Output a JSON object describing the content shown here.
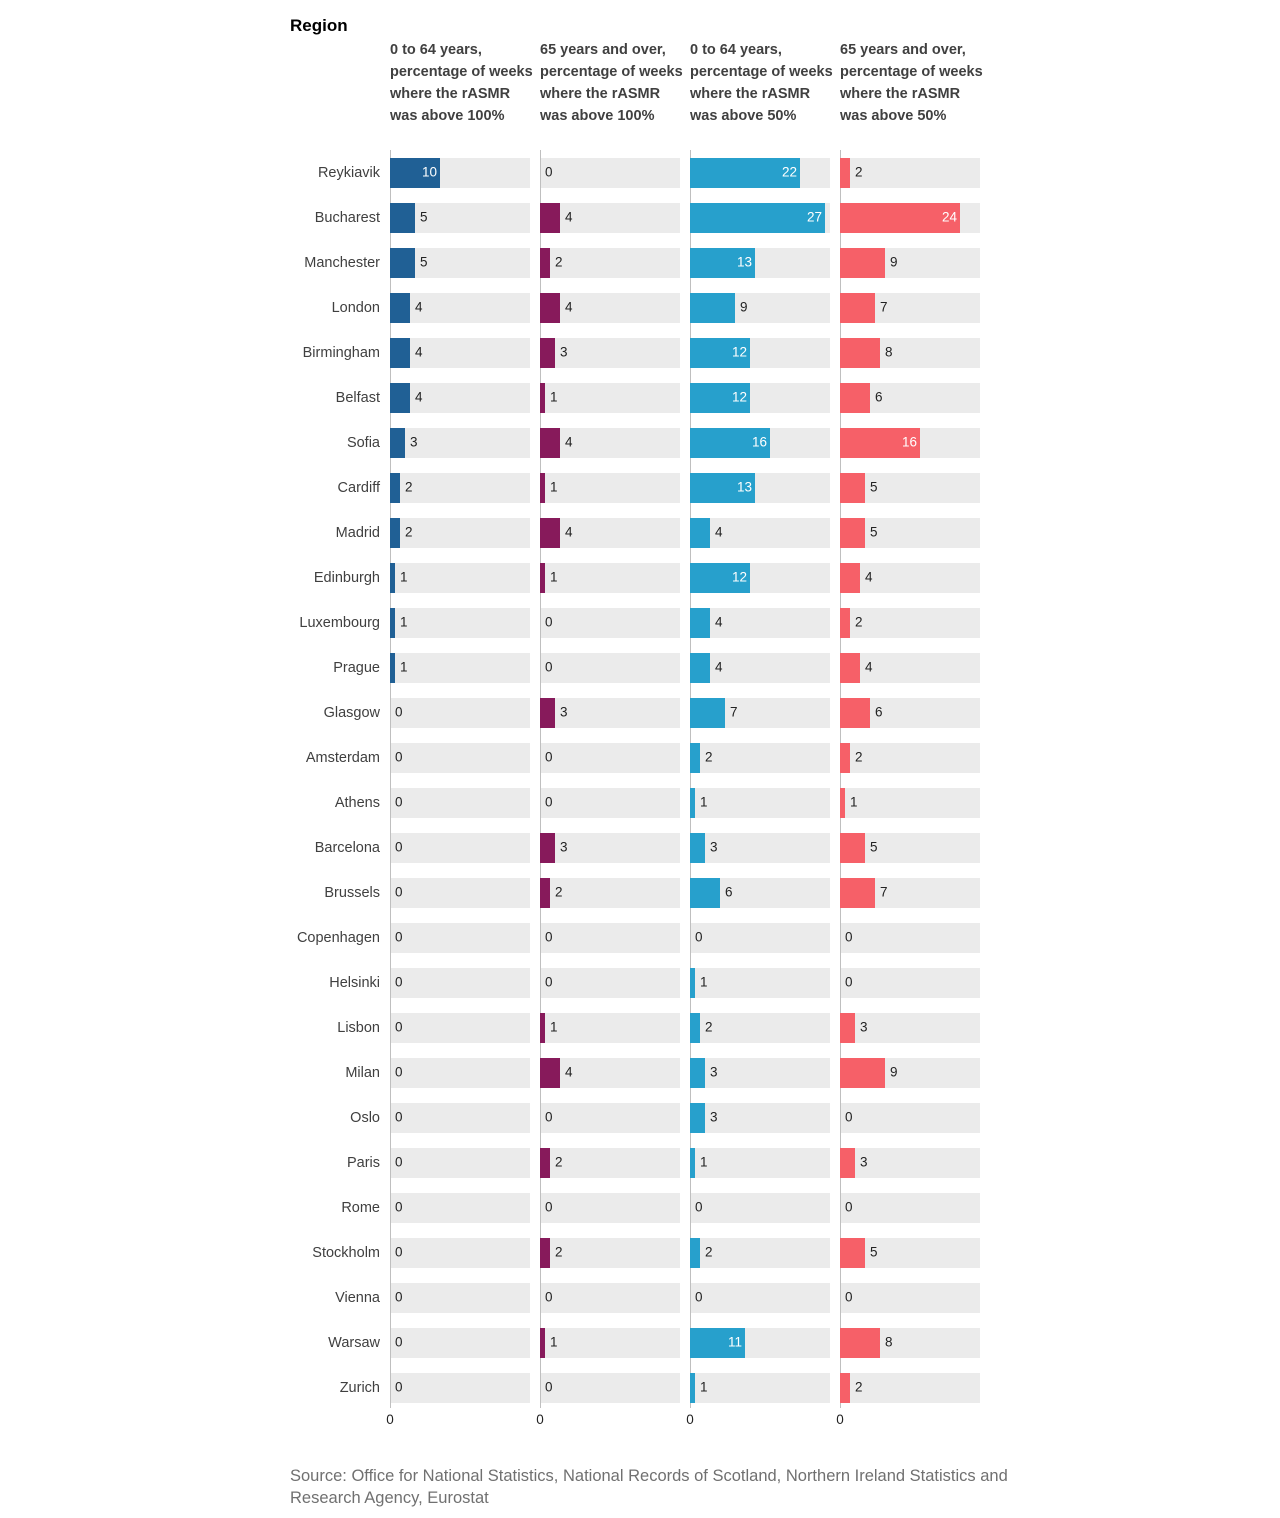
{
  "title": "Region",
  "source": "Source: Office for National Statistics, National Records of Scotland, Northern Ireland Statistics and Research Agency, Eurostat",
  "colors": {
    "background_track": "#ebebeb",
    "axis": "#bfbfbf",
    "series": [
      "#206095",
      "#871a5b",
      "#27a0cc",
      "#f66068"
    ]
  },
  "chart_data": {
    "type": "bar",
    "orientation": "horizontal",
    "categories": [
      "Reykiavik",
      "Bucharest",
      "Manchester",
      "London",
      "Birmingham",
      "Belfast",
      "Sofia",
      "Cardiff",
      "Madrid",
      "Edinburgh",
      "Luxembourg",
      "Prague",
      "Glasgow",
      "Amsterdam",
      "Athens",
      "Barcelona",
      "Brussels",
      "Copenhagen",
      "Helsinki",
      "Lisbon",
      "Milan",
      "Oslo",
      "Paris",
      "Rome",
      "Stockholm",
      "Vienna",
      "Warsaw",
      "Zurich"
    ],
    "xlim": [
      0,
      28
    ],
    "x_tick_labels": [
      "0"
    ],
    "series": [
      {
        "name": "0 to 64 years, percentage of weeks where the rASMR was above 100%",
        "values": [
          10,
          5,
          5,
          4,
          4,
          4,
          3,
          2,
          2,
          1,
          1,
          1,
          0,
          0,
          0,
          0,
          0,
          0,
          0,
          0,
          0,
          0,
          0,
          0,
          0,
          0,
          0,
          0
        ]
      },
      {
        "name": "65 years and over, percentage of weeks where the rASMR was above 100%",
        "values": [
          0,
          4,
          2,
          4,
          3,
          1,
          4,
          1,
          4,
          1,
          0,
          0,
          3,
          0,
          0,
          3,
          2,
          0,
          0,
          1,
          4,
          0,
          2,
          0,
          2,
          0,
          1,
          0
        ]
      },
      {
        "name": "0 to 64 years, percentage of weeks where the rASMR was above 50%",
        "values": [
          22,
          27,
          13,
          9,
          12,
          12,
          16,
          13,
          4,
          12,
          4,
          4,
          7,
          2,
          1,
          3,
          6,
          0,
          1,
          2,
          3,
          3,
          1,
          0,
          2,
          0,
          11,
          1
        ]
      },
      {
        "name": "65 years and over, percentage of weeks where the rASMR was above 50%",
        "values": [
          2,
          24,
          9,
          7,
          8,
          6,
          16,
          5,
          5,
          4,
          2,
          4,
          6,
          2,
          1,
          5,
          7,
          0,
          0,
          3,
          9,
          0,
          3,
          0,
          5,
          0,
          8,
          2
        ]
      }
    ]
  }
}
